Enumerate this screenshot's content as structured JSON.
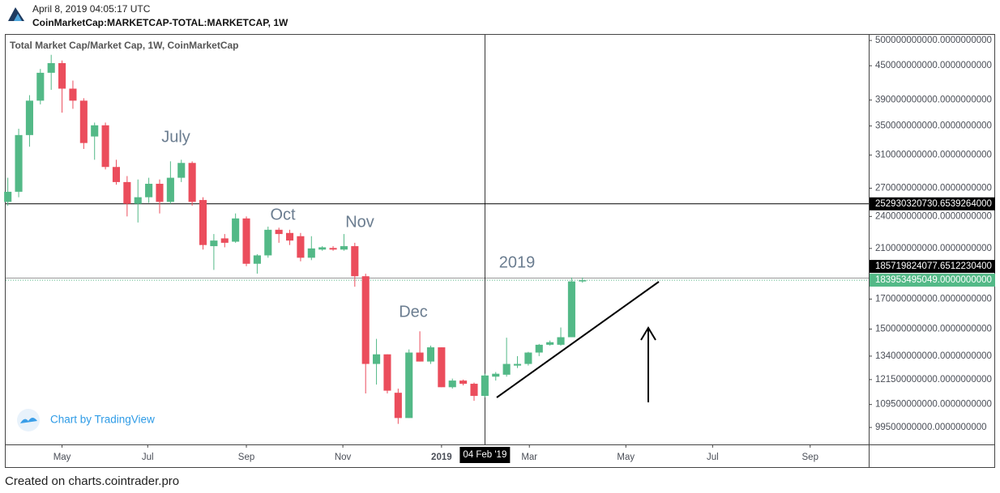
{
  "header": {
    "date": "April 8, 2019 04:05:17 UTC",
    "symbol": "CoinMarketCap:MARKETCAP-TOTAL:MARKETCAP, 1W"
  },
  "footer": "Created on charts.cointrader.pro",
  "branding": "Chart by TradingView",
  "chart_data": {
    "type": "candlestick",
    "title": "Total Market Cap/Market Cap, 1W, CoinMarketCap",
    "yscale": "log",
    "up_color": "#53b987",
    "down_color": "#eb4d5c",
    "open": [
      255000000000.0,
      266000000000.0,
      337000000000.0,
      389000000000.0,
      437000000000.0,
      455000000000.0,
      409000000000.0,
      389000000000.0,
      335000000000.0,
      351000000000.0,
      295000000000.0,
      277000000000.0,
      253000000000.0,
      260000000000.0,
      275000000000.0,
      255000000000.0,
      282000000000.0,
      300000000000.0,
      257000000000.0,
      212000000000.0,
      219000000000.0,
      216000000000.0,
      238000000000.0,
      197000000000.0,
      204000000000.0,
      227000000000.0,
      224000000000.0,
      221000000000.0,
      202000000000.0,
      209000000000.0,
      210400000000.0,
      209000000000.0,
      212000000000.0,
      187000000000.0,
      129700000000.0,
      135000000000.0,
      115000000000.0,
      103500000000.0,
      136000000000.0,
      131000000000.0,
      139000000000.0,
      117700000000.0,
      121000000000.0,
      119400000000.0,
      113500000000.0,
      123000000000.0,
      124000000000.0,
      128800000000.0,
      129700000000.0,
      136000000000.0,
      140500000000.0,
      140500000000.0,
      145000000000.0,
      183000000000.0
    ],
    "high": [
      282000000000.0,
      346000000000.0,
      398000000000.0,
      444000000000.0,
      471000000000.0,
      460000000000.0,
      423000000000.0,
      393000000000.0,
      355000000000.0,
      355000000000.0,
      304000000000.0,
      284000000000.0,
      280000000000.0,
      282000000000.0,
      280000000000.0,
      302000000000.0,
      304000000000.0,
      302000000000.0,
      260000000000.0,
      223000000000.0,
      223000000000.0,
      243000000000.0,
      240000000000.0,
      205000000000.0,
      230000000000.0,
      229000000000.0,
      227000000000.0,
      224000000000.0,
      221000000000.0,
      212000000000.0,
      212000000000.0,
      223000000000.0,
      215000000000.0,
      189000000000.0,
      144000000000.0,
      135000000000.0,
      117000000000.0,
      137800000000.0,
      148600000000.0,
      140000000000.0,
      139000000000.0,
      122000000000.0,
      121500000000.0,
      120000000000.0,
      124500000000.0,
      125400000000.0,
      144700000000.0,
      134000000000.0,
      136400000000.0,
      141000000000.0,
      143000000000.0,
      151000000000.0,
      186000000000.0,
      186000000000.0
    ],
    "low": [
      251000000000.0,
      260000000000.0,
      321000000000.0,
      383000000000.0,
      407000000000.0,
      370000000000.0,
      376000000000.0,
      318000000000.0,
      304000000000.0,
      292000000000.0,
      274000000000.0,
      240000000000.0,
      234000000000.0,
      254000000000.0,
      243000000000.0,
      253000000000.0,
      277000000000.0,
      251000000000.0,
      209000000000.0,
      192000000000.0,
      211000000000.0,
      215000000000.0,
      195000000000.0,
      189000000000.0,
      202000000000.0,
      215000000000.0,
      213000000000.0,
      199000000000.0,
      200000000000.0,
      208000000000.0,
      208000000000.0,
      208000000000.0,
      179000000000.0,
      114700000000.0,
      119000000000.0,
      114700000000.0,
      101000000000.0,
      103500000000.0,
      131000000000.0,
      129700000000.0,
      117700000000.0,
      117000000000.0,
      118600000000.0,
      111200000000.0,
      112800000000.0,
      121000000000.0,
      123000000000.0,
      127500000000.0,
      128800000000.0,
      134000000000.0,
      140000000000.0,
      140000000000.0,
      145000000000.0,
      182000000000.0
    ],
    "close": [
      266000000000.0,
      337000000000.0,
      389000000000.0,
      437000000000.0,
      455000000000.0,
      409000000000.0,
      389000000000.0,
      326000000000.0,
      351000000000.0,
      295000000000.0,
      277000000000.0,
      253000000000.0,
      260000000000.0,
      275000000000.0,
      255000000000.0,
      282000000000.0,
      300000000000.0,
      255000000000.0,
      213000000000.0,
      217000000000.0,
      215000000000.0,
      238000000000.0,
      197000000000.0,
      204000000000.0,
      227000000000.0,
      223000000000.0,
      217000000000.0,
      202000000000.0,
      210000000000.0,
      211000000000.0,
      209000000000.0,
      212000000000.0,
      187000000000.0,
      129700000000.0,
      135000000000.0,
      116000000000.0,
      103500000000.0,
      136000000000.0,
      131000000000.0,
      139000000000.0,
      117700000000.0,
      121000000000.0,
      119400000000.0,
      113500000000.0,
      123600000000.0,
      124500000000.0,
      129700000000.0,
      129700000000.0,
      136000000000.0,
      140500000000.0,
      142000000000.0,
      145000000000.0,
      183000000000.0,
      183953495049
    ],
    "xlim": [
      -0.2,
      79.4
    ],
    "xticks": [
      {
        "value": 5.0,
        "label": "May"
      },
      {
        "value": 12.9,
        "label": "Jul"
      },
      {
        "value": 22.0,
        "label": "Sep"
      },
      {
        "value": 30.9,
        "label": "Nov"
      },
      {
        "value": 40.0,
        "label": "2019"
      },
      {
        "value": 48.1,
        "label": "Mar"
      },
      {
        "value": 57.0,
        "label": "May"
      },
      {
        "value": 65.0,
        "label": "Jul"
      },
      {
        "value": 74.0,
        "label": "Sep"
      }
    ],
    "ylim": [
      92700000000.0,
      512000000000.0
    ],
    "yticks": [
      {
        "value": 500000000000.0,
        "label": "500000000000.0000000000"
      },
      {
        "value": 450000000000.0,
        "label": "450000000000.0000000000"
      },
      {
        "value": 390000000000.0,
        "label": "390000000000.0000000000"
      },
      {
        "value": 350000000000.0,
        "label": "350000000000.0000000000"
      },
      {
        "value": 310000000000.0,
        "label": "310000000000.0000000000"
      },
      {
        "value": 270000000000.0,
        "label": "270000000000.0000000000"
      },
      {
        "value": 240000000000.0,
        "label": "240000000000.0000000000"
      },
      {
        "value": 210000000000.0,
        "label": "210000000000.0000000000"
      },
      {
        "value": 170000000000.0,
        "label": "170000000000.0000000000"
      },
      {
        "value": 150000000000.0,
        "label": "150000000000.0000000000"
      },
      {
        "value": 134000000000.0,
        "label": "134000000000.0000000000"
      },
      {
        "value": 121500000000.0,
        "label": "121500000000.0000000000"
      },
      {
        "value": 109500000000.0,
        "label": "109500000000.0000000000"
      },
      {
        "value": 99500000000.0,
        "label": "99500000000.0000000000"
      }
    ],
    "hline": {
      "value": 252930320730.6539,
      "label": "252930320730.6539264000"
    },
    "crosshair_y": {
      "value": 185719824077.6512,
      "label": "185719824077.6512230400"
    },
    "crosshair_x": {
      "value": 44,
      "label": "04 Feb '19"
    },
    "last_price": {
      "value": 183953495049,
      "label": "183953495049.0000000000"
    },
    "annotations": [
      "July",
      "Oct",
      "Nov",
      "Dec",
      "2019"
    ]
  }
}
